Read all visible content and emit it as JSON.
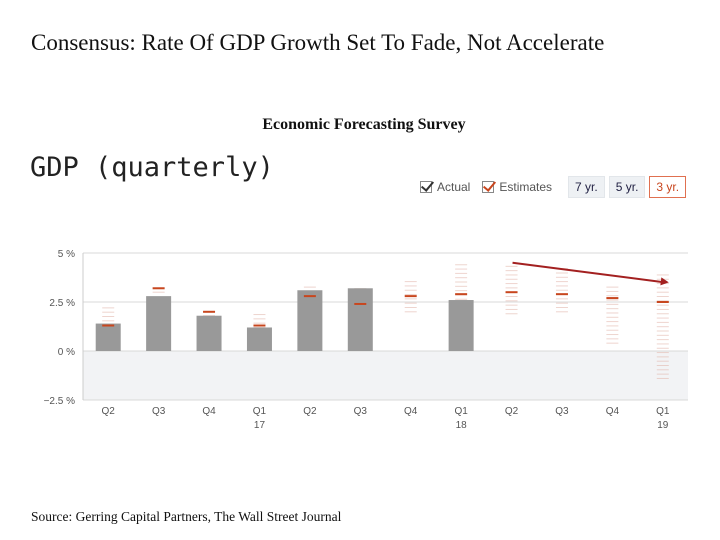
{
  "slide_title": "Consensus: Rate Of GDP Growth Set To Fade, Not Accelerate",
  "survey_title": "Economic Forecasting Survey",
  "chart_heading": "GDP (quarterly)",
  "legend": {
    "actual_label": "Actual",
    "estimates_label": "Estimates",
    "ranges": [
      "7 yr.",
      "5 yr.",
      "3 yr."
    ],
    "active_range": "3 yr."
  },
  "source": "Source: Gerring Capital Partners, The Wall Street Journal",
  "colors": {
    "actual_bar": "#999999",
    "estimate_mark": "#c8461e",
    "trend_arrow": "#a32020",
    "negative_band": "#f2f3f5"
  },
  "chart_data": {
    "type": "bar",
    "y_tick_labels": [
      "5 %",
      "2.5 %",
      "0 %",
      "−2.5 %"
    ],
    "y_ticks": [
      5,
      2.5,
      0,
      -2.5
    ],
    "ylim": [
      -2.5,
      5
    ],
    "categories": [
      {
        "q": "Q2",
        "year": ""
      },
      {
        "q": "Q3",
        "year": ""
      },
      {
        "q": "Q4",
        "year": ""
      },
      {
        "q": "Q1",
        "year": "17"
      },
      {
        "q": "Q2",
        "year": ""
      },
      {
        "q": "Q3",
        "year": ""
      },
      {
        "q": "Q4",
        "year": ""
      },
      {
        "q": "Q1",
        "year": "18"
      },
      {
        "q": "Q2",
        "year": ""
      },
      {
        "q": "Q3",
        "year": ""
      },
      {
        "q": "Q4",
        "year": ""
      },
      {
        "q": "Q1",
        "year": "19"
      }
    ],
    "series": [
      {
        "name": "Actual",
        "values": [
          1.4,
          2.8,
          1.8,
          1.2,
          3.1,
          3.2,
          null,
          2.6,
          null,
          null,
          null,
          null
        ]
      },
      {
        "name": "Estimates",
        "values": [
          1.3,
          3.2,
          2.0,
          1.3,
          2.8,
          2.4,
          2.8,
          2.9,
          3.0,
          2.9,
          2.7,
          2.5
        ]
      }
    ],
    "estimate_spread": [
      [
        1.1,
        2.2
      ],
      [
        3.0,
        3.4
      ],
      [
        1.8,
        2.2
      ],
      [
        1.2,
        2.0
      ],
      [
        2.6,
        3.4
      ],
      [
        2.3,
        3.3
      ],
      [
        2.0,
        3.7
      ],
      [
        2.2,
        4.5
      ],
      [
        1.9,
        4.4
      ],
      [
        2.0,
        4.2
      ],
      [
        0.4,
        3.4
      ],
      [
        -1.4,
        3.9
      ]
    ],
    "trend_line": {
      "from": {
        "index": 8,
        "value": 4.5
      },
      "to": {
        "index": 11,
        "value": 3.5
      }
    },
    "grid": true
  }
}
